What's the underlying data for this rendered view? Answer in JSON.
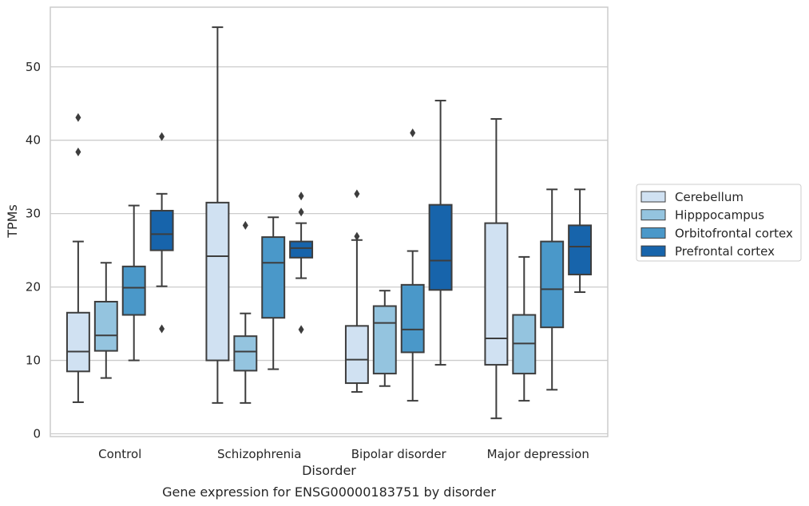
{
  "chart_data": {
    "type": "boxplot",
    "caption": "Gene expression for ENSG00000183751 by disorder",
    "xlabel": "Disorder",
    "ylabel": "TPMs",
    "ylim": [
      -0.5,
      58
    ],
    "yticks": [
      0,
      10,
      20,
      30,
      40,
      50
    ],
    "grid": "horizontal",
    "legend_position": "right",
    "categories": [
      "Control",
      "Schizophrenia",
      "Bipolar disorder",
      "Major depression"
    ],
    "series": [
      {
        "name": "Cerebellum",
        "color": "#d0e1f2",
        "boxes": [
          {
            "whislo": 4.3,
            "q1": 8.5,
            "med": 11.2,
            "q3": 16.5,
            "whishi": 26.2,
            "fliers": [
              38.4,
              43.1
            ]
          },
          {
            "whislo": 4.2,
            "q1": 10.0,
            "med": 24.2,
            "q3": 31.5,
            "whishi": 55.4,
            "fliers": []
          },
          {
            "whislo": 5.7,
            "q1": 6.9,
            "med": 10.1,
            "q3": 14.7,
            "whishi": 26.4,
            "fliers": [
              26.9,
              32.7
            ]
          },
          {
            "whislo": 2.1,
            "q1": 9.4,
            "med": 13.0,
            "q3": 28.7,
            "whishi": 42.9,
            "fliers": []
          }
        ]
      },
      {
        "name": "Hipppocampus",
        "color": "#94c4df",
        "boxes": [
          {
            "whislo": 7.6,
            "q1": 11.3,
            "med": 13.4,
            "q3": 18.0,
            "whishi": 23.3,
            "fliers": []
          },
          {
            "whislo": 4.2,
            "q1": 8.6,
            "med": 11.2,
            "q3": 13.3,
            "whishi": 16.4,
            "fliers": [
              28.4
            ]
          },
          {
            "whislo": 6.5,
            "q1": 8.2,
            "med": 15.1,
            "q3": 17.4,
            "whishi": 19.5,
            "fliers": []
          },
          {
            "whislo": 4.5,
            "q1": 8.2,
            "med": 12.3,
            "q3": 16.2,
            "whishi": 24.1,
            "fliers": []
          }
        ]
      },
      {
        "name": "Orbitofrontal cortex",
        "color": "#4a98c9",
        "boxes": [
          {
            "whislo": 10.0,
            "q1": 16.2,
            "med": 19.9,
            "q3": 22.8,
            "whishi": 31.1,
            "fliers": []
          },
          {
            "whislo": 8.8,
            "q1": 15.8,
            "med": 23.3,
            "q3": 26.8,
            "whishi": 29.5,
            "fliers": []
          },
          {
            "whislo": 4.5,
            "q1": 11.1,
            "med": 14.2,
            "q3": 20.3,
            "whishi": 24.9,
            "fliers": [
              41.0
            ]
          },
          {
            "whislo": 6.0,
            "q1": 14.5,
            "med": 19.7,
            "q3": 26.2,
            "whishi": 33.3,
            "fliers": []
          }
        ]
      },
      {
        "name": "Prefrontal cortex",
        "color": "#1764ab",
        "boxes": [
          {
            "whislo": 20.1,
            "q1": 25.0,
            "med": 27.2,
            "q3": 30.4,
            "whishi": 32.7,
            "fliers": [
              14.3,
              40.5
            ]
          },
          {
            "whislo": 21.2,
            "q1": 24.0,
            "med": 25.3,
            "q3": 26.2,
            "whishi": 28.7,
            "fliers": [
              14.2,
              30.2,
              32.4
            ]
          },
          {
            "whislo": 9.4,
            "q1": 19.6,
            "med": 23.6,
            "q3": 31.2,
            "whishi": 45.4,
            "fliers": []
          },
          {
            "whislo": 19.3,
            "q1": 21.7,
            "med": 25.5,
            "q3": 28.4,
            "whishi": 33.3,
            "fliers": []
          }
        ]
      }
    ]
  }
}
